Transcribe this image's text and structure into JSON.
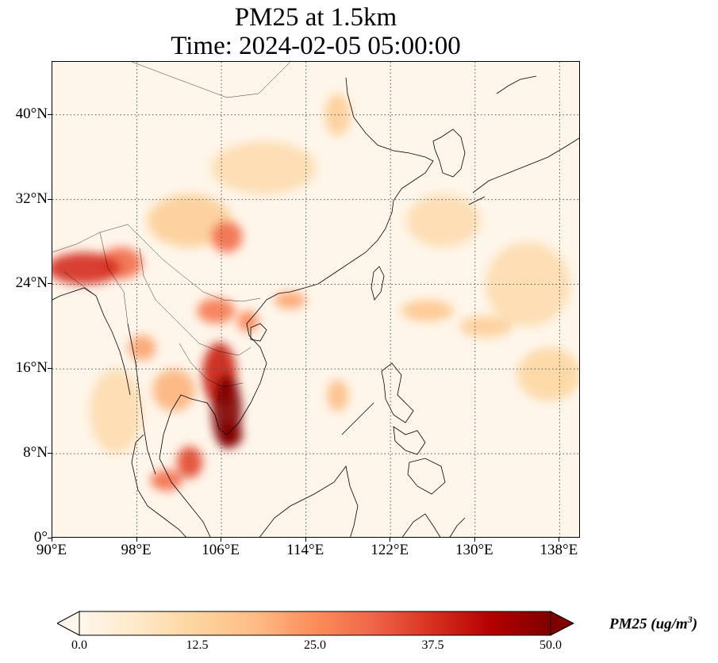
{
  "title": {
    "line1": "PM25 at 1.5km",
    "line2": "Time: 2024-02-05 05:00:00"
  },
  "map": {
    "projection": "PlateCarree",
    "lon_range": [
      90,
      140
    ],
    "lat_range": [
      0,
      45
    ],
    "gridlines": "dotted",
    "y_ticks": [
      {
        "lat": 40,
        "label": "40°N"
      },
      {
        "lat": 32,
        "label": "32°N"
      },
      {
        "lat": 24,
        "label": "24°N"
      },
      {
        "lat": 16,
        "label": "16°N"
      },
      {
        "lat": 8,
        "label": "8°N"
      },
      {
        "lat": 0,
        "label": "0°"
      }
    ],
    "x_ticks": [
      {
        "lon": 90,
        "label": "90°E"
      },
      {
        "lon": 98,
        "label": "98°E"
      },
      {
        "lon": 106,
        "label": "106°E"
      },
      {
        "lon": 114,
        "label": "114°E"
      },
      {
        "lon": 122,
        "label": "122°E"
      },
      {
        "lon": 130,
        "label": "130°E"
      },
      {
        "lon": 138,
        "label": "138°E"
      }
    ],
    "colormap": "OrRd",
    "hotspots": [
      {
        "lon": 106.5,
        "lat": 12.0,
        "value": 50,
        "rx": 1.4,
        "ry": 3.5
      },
      {
        "lon": 105.8,
        "lat": 15.5,
        "value": 40,
        "rx": 1.6,
        "ry": 3.0
      },
      {
        "lon": 106.8,
        "lat": 9.8,
        "value": 48,
        "rx": 1.2,
        "ry": 1.2
      },
      {
        "lon": 103.0,
        "lat": 7.2,
        "value": 35,
        "rx": 1.2,
        "ry": 1.5
      },
      {
        "lon": 100.8,
        "lat": 5.5,
        "value": 30,
        "rx": 1.5,
        "ry": 1.0
      },
      {
        "lon": 93.0,
        "lat": 25.5,
        "value": 38,
        "rx": 3.5,
        "ry": 1.5
      },
      {
        "lon": 96.5,
        "lat": 26.0,
        "value": 30,
        "rx": 2.0,
        "ry": 1.5
      },
      {
        "lon": 106.5,
        "lat": 28.5,
        "value": 30,
        "rx": 1.5,
        "ry": 1.5
      },
      {
        "lon": 105.5,
        "lat": 21.5,
        "value": 28,
        "rx": 1.8,
        "ry": 1.2
      },
      {
        "lon": 108.5,
        "lat": 20.5,
        "value": 26,
        "rx": 1.0,
        "ry": 1.0
      },
      {
        "lon": 112.5,
        "lat": 22.5,
        "value": 22,
        "rx": 1.5,
        "ry": 0.8
      },
      {
        "lon": 98.5,
        "lat": 18.0,
        "value": 22,
        "rx": 1.3,
        "ry": 1.2
      },
      {
        "lon": 101.5,
        "lat": 14.0,
        "value": 20,
        "rx": 2.0,
        "ry": 2.0
      },
      {
        "lon": 117.0,
        "lat": 13.5,
        "value": 18,
        "rx": 1.0,
        "ry": 1.5
      },
      {
        "lon": 125.5,
        "lat": 21.5,
        "value": 16,
        "rx": 2.5,
        "ry": 1.0
      },
      {
        "lon": 131.0,
        "lat": 20.0,
        "value": 14,
        "rx": 2.5,
        "ry": 1.0
      },
      {
        "lon": 137.0,
        "lat": 15.5,
        "value": 12,
        "rx": 3.0,
        "ry": 2.5
      },
      {
        "lon": 117.0,
        "lat": 40.0,
        "value": 14,
        "rx": 1.2,
        "ry": 2.0
      },
      {
        "lon": 103.0,
        "lat": 30.0,
        "value": 14,
        "rx": 4.0,
        "ry": 2.5
      },
      {
        "lon": 110.0,
        "lat": 35.0,
        "value": 10,
        "rx": 5.0,
        "ry": 2.5
      },
      {
        "lon": 96.0,
        "lat": 12.0,
        "value": 10,
        "rx": 2.5,
        "ry": 4.0
      },
      {
        "lon": 127.0,
        "lat": 30.0,
        "value": 10,
        "rx": 3.5,
        "ry": 2.5
      },
      {
        "lon": 135.0,
        "lat": 24.0,
        "value": 10,
        "rx": 4.0,
        "ry": 4.0
      }
    ]
  },
  "colorbar": {
    "label_main": "PM25 (ug/m",
    "label_sup": "3",
    "label_end": ")",
    "min": 0,
    "max": 50,
    "extend": "both",
    "ticks": [
      "0.0",
      "12.5",
      "25.0",
      "37.5",
      "50.0"
    ]
  }
}
